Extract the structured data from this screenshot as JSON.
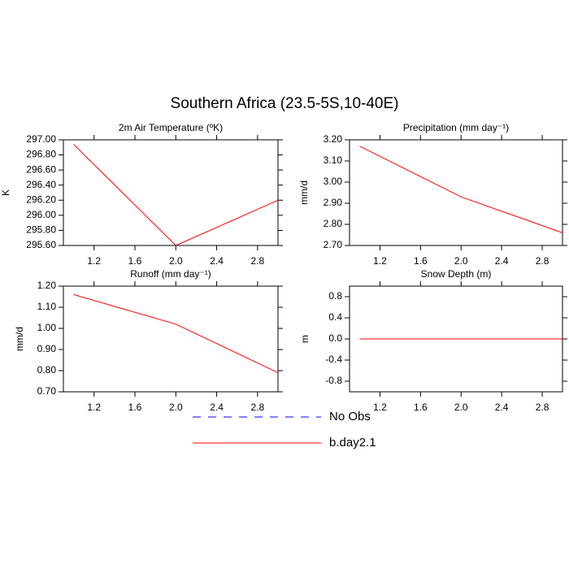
{
  "title": "Southern Africa (23.5-5S,10-40E)",
  "legend": [
    {
      "name": "No Obs",
      "color": "#0000ff",
      "dash": true
    },
    {
      "name": "b.day2.1",
      "color": "#ff0000",
      "dash": false
    }
  ],
  "chart_data": [
    {
      "type": "line",
      "title": "2m Air Temperature (ºK)",
      "ylabel": "K",
      "x": [
        1,
        2,
        3
      ],
      "xlim": [
        0.9,
        3.0
      ],
      "xticks": [
        {
          "value": 1.2,
          "label": "1.2"
        },
        {
          "value": 1.6,
          "label": "1.6"
        },
        {
          "value": 2,
          "label": "2.0"
        },
        {
          "value": 2.4,
          "label": "2.4"
        },
        {
          "value": 2.8,
          "label": "2.8"
        }
      ],
      "ylim": [
        295.6,
        297.0
      ],
      "yticks": [
        {
          "value": 295.6,
          "label": "295.60"
        },
        {
          "value": 295.8,
          "label": "295.80"
        },
        {
          "value": 296,
          "label": "296.00"
        },
        {
          "value": 296.2,
          "label": "296.20"
        },
        {
          "value": 296.4,
          "label": "296.40"
        },
        {
          "value": 296.6,
          "label": "296.60"
        },
        {
          "value": 296.8,
          "label": "296.80"
        },
        {
          "value": 297,
          "label": "297.00"
        }
      ],
      "series": [
        {
          "name": "b.day2.1",
          "color": "#ff0000",
          "values": [
            296.94,
            295.6,
            296.2
          ]
        }
      ]
    },
    {
      "type": "line",
      "title": "Precipitation (mm day⁻¹)",
      "ylabel": "mm/d",
      "x": [
        1,
        2,
        3
      ],
      "xlim": [
        0.9,
        3.0
      ],
      "xticks": [
        {
          "value": 1.2,
          "label": "1.2"
        },
        {
          "value": 1.6,
          "label": "1.6"
        },
        {
          "value": 2,
          "label": "2.0"
        },
        {
          "value": 2.4,
          "label": "2.4"
        },
        {
          "value": 2.8,
          "label": "2.8"
        }
      ],
      "ylim": [
        2.7,
        3.2
      ],
      "yticks": [
        {
          "value": 2.7,
          "label": "2.70"
        },
        {
          "value": 2.8,
          "label": "2.80"
        },
        {
          "value": 2.9,
          "label": "2.90"
        },
        {
          "value": 3,
          "label": "3.00"
        },
        {
          "value": 3.1,
          "label": "3.10"
        },
        {
          "value": 3.2,
          "label": "3.20"
        }
      ],
      "series": [
        {
          "name": "b.day2.1",
          "color": "#ff0000",
          "values": [
            3.17,
            2.93,
            2.76
          ]
        }
      ]
    },
    {
      "type": "line",
      "title": "Runoff (mm day⁻¹)",
      "ylabel": "mm/d",
      "x": [
        1,
        2,
        3
      ],
      "xlim": [
        0.9,
        3.0
      ],
      "xticks": [
        {
          "value": 1.2,
          "label": "1.2"
        },
        {
          "value": 1.6,
          "label": "1.6"
        },
        {
          "value": 2,
          "label": "2.0"
        },
        {
          "value": 2.4,
          "label": "2.4"
        },
        {
          "value": 2.8,
          "label": "2.8"
        }
      ],
      "ylim": [
        0.7,
        1.2
      ],
      "yticks": [
        {
          "value": 0.7,
          "label": "0.70"
        },
        {
          "value": 0.8,
          "label": "0.80"
        },
        {
          "value": 0.9,
          "label": "0.90"
        },
        {
          "value": 1,
          "label": "1.00"
        },
        {
          "value": 1.1,
          "label": "1.10"
        },
        {
          "value": 1.2,
          "label": "1.20"
        }
      ],
      "series": [
        {
          "name": "b.day2.1",
          "color": "#ff0000",
          "values": [
            1.16,
            1.02,
            0.79
          ]
        }
      ]
    },
    {
      "type": "line",
      "title": "Snow Depth (m)",
      "ylabel": "m",
      "x": [
        1,
        2,
        3
      ],
      "xlim": [
        0.9,
        3.0
      ],
      "xticks": [
        {
          "value": 1.2,
          "label": "1.2"
        },
        {
          "value": 1.6,
          "label": "1.6"
        },
        {
          "value": 2,
          "label": "2.0"
        },
        {
          "value": 2.4,
          "label": "2.4"
        },
        {
          "value": 2.8,
          "label": "2.8"
        }
      ],
      "ylim": [
        -1,
        1
      ],
      "yticks": [
        -0.8,
        -0.4,
        {
          "value": 0,
          "label": "0.0"
        },
        0.4,
        0.8
      ],
      "series": [
        {
          "name": "b.day2.1",
          "color": "#ff0000",
          "values": [
            0,
            0,
            0
          ]
        }
      ]
    }
  ]
}
